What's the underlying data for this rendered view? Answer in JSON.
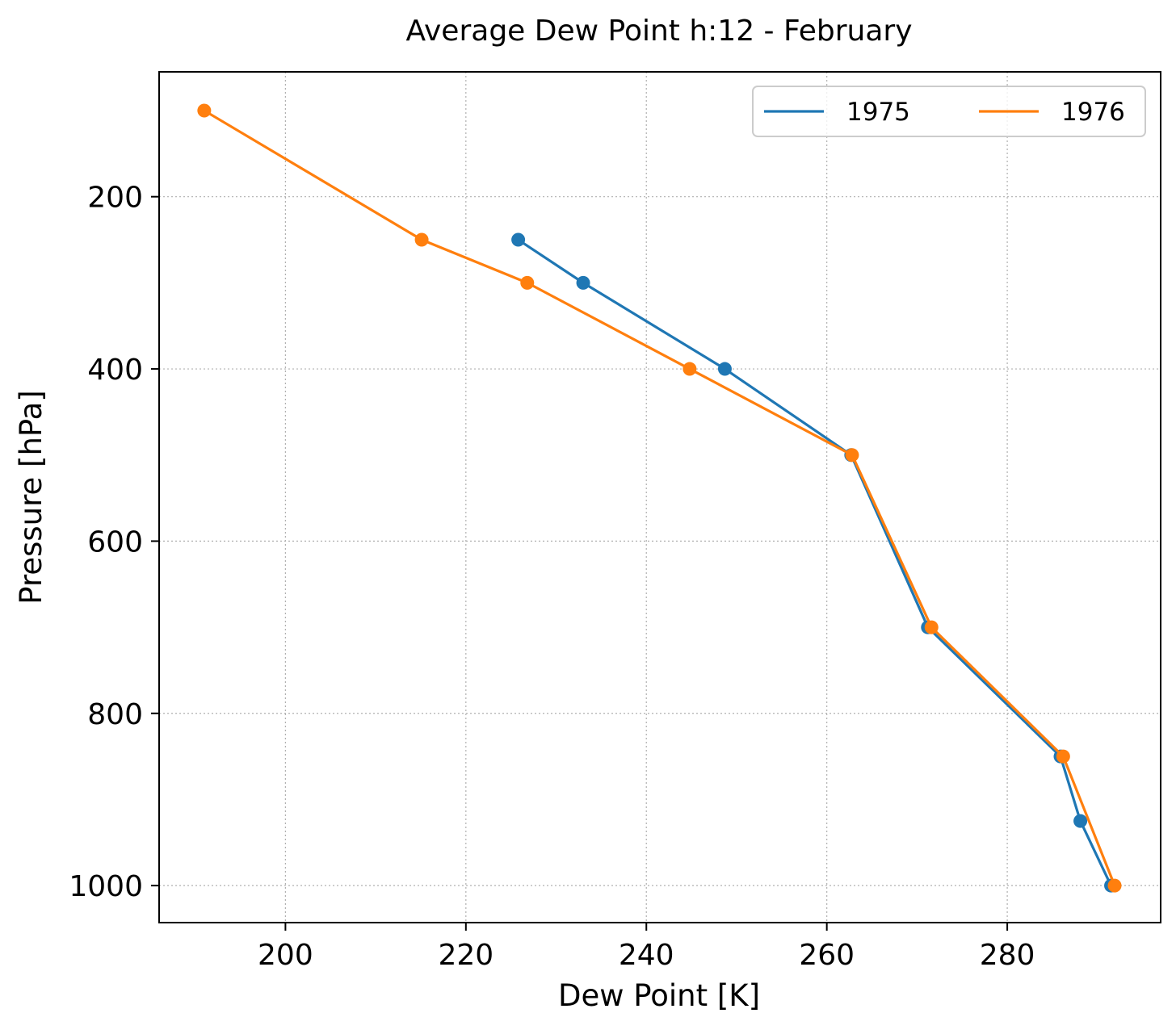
{
  "chart_data": {
    "type": "line",
    "title": "Average Dew Point h:12 - February",
    "xlabel": "Dew Point [K]",
    "ylabel": "Pressure [hPa]",
    "xlim": [
      186,
      297
    ],
    "ylim": [
      1043,
      55
    ],
    "y_inverted": true,
    "x_ticks": [
      200,
      220,
      240,
      260,
      280
    ],
    "y_ticks": [
      200,
      400,
      600,
      800,
      1000
    ],
    "grid": true,
    "grid_style": "dotted",
    "legend_placement": "top-right",
    "legend_columns": 2,
    "markers": true,
    "series": [
      {
        "name": "1975",
        "color": "#1f77b4",
        "points": [
          {
            "x": 225.8,
            "y": 250
          },
          {
            "x": 233.0,
            "y": 300
          },
          {
            "x": 248.7,
            "y": 400
          },
          {
            "x": 262.7,
            "y": 500
          },
          {
            "x": 271.2,
            "y": 700
          },
          {
            "x": 285.9,
            "y": 850
          },
          {
            "x": 288.1,
            "y": 925
          },
          {
            "x": 291.5,
            "y": 1000
          }
        ]
      },
      {
        "name": "1976",
        "color": "#ff7f0e",
        "points": [
          {
            "x": 191.0,
            "y": 100
          },
          {
            "x": 215.1,
            "y": 250
          },
          {
            "x": 226.8,
            "y": 300
          },
          {
            "x": 244.8,
            "y": 400
          },
          {
            "x": 262.8,
            "y": 500
          },
          {
            "x": 271.6,
            "y": 700
          },
          {
            "x": 286.2,
            "y": 850
          },
          {
            "x": 291.9,
            "y": 1000
          }
        ]
      }
    ]
  }
}
